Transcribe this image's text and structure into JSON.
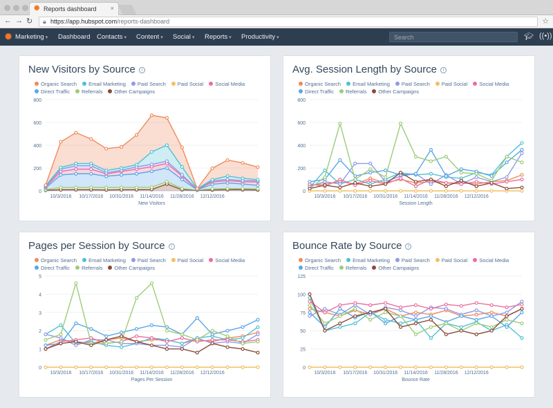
{
  "browser": {
    "tab_title": "Reports dashboard",
    "url_host": "https://app.hubspot.com",
    "url_path": "/reports-dashboard"
  },
  "nav": {
    "items": [
      "Marketing",
      "Dashboard",
      "Contacts",
      "Content",
      "Social",
      "Reports",
      "Productivity"
    ],
    "search_placeholder": "Search"
  },
  "legend_colors": {
    "Organic Search": "#f08a5d",
    "Email Marketing": "#4fc1d4",
    "Paid Search": "#8f9ae8",
    "Paid Social": "#f2c063",
    "Social Media": "#ea6f9d",
    "Direct Traffic": "#5aa6e6",
    "Referrals": "#9ccc7a",
    "Other Campaigns": "#8b4a38"
  },
  "chart_data": [
    {
      "type": "area",
      "title": "New Visitors by Source",
      "xlabel": "New Visitors",
      "ylim": [
        0,
        800
      ],
      "yticks": [
        "0",
        "200",
        "400",
        "600",
        "800"
      ],
      "xtick_labels": [
        "10/3/2016",
        "10/17/2016",
        "10/31/2016",
        "11/14/2016",
        "11/28/2016",
        "12/12/2016"
      ],
      "stacked": true,
      "x_count": 15,
      "series": [
        {
          "name": "Other Campaigns",
          "values": [
            5,
            10,
            10,
            10,
            8,
            10,
            10,
            12,
            60,
            10,
            5,
            8,
            10,
            10,
            8
          ]
        },
        {
          "name": "Referrals",
          "values": [
            5,
            20,
            20,
            20,
            20,
            20,
            20,
            20,
            20,
            10,
            2,
            10,
            10,
            10,
            10
          ]
        },
        {
          "name": "Direct Traffic",
          "values": [
            15,
            110,
            120,
            120,
            100,
            110,
            120,
            140,
            120,
            80,
            3,
            40,
            50,
            40,
            30
          ]
        },
        {
          "name": "Social Media",
          "values": [
            10,
            30,
            40,
            40,
            20,
            30,
            40,
            40,
            40,
            30,
            3,
            20,
            20,
            20,
            30
          ]
        },
        {
          "name": "Paid Search",
          "values": [
            5,
            20,
            30,
            30,
            10,
            10,
            20,
            20,
            20,
            10,
            3,
            10,
            10,
            10,
            10
          ]
        },
        {
          "name": "Email Marketing",
          "values": [
            5,
            15,
            20,
            20,
            20,
            20,
            20,
            110,
            140,
            70,
            2,
            10,
            30,
            20,
            10
          ]
        },
        {
          "name": "Organic Search",
          "values": [
            5,
            225,
            270,
            215,
            192,
            185,
            260,
            320,
            240,
            170,
            2,
            100,
            140,
            135,
            110
          ]
        }
      ]
    },
    {
      "type": "line",
      "title": "Avg. Session Length by Source",
      "xlabel": "Session Length",
      "ylim": [
        0,
        800
      ],
      "yticks": [
        "0",
        "200",
        "400",
        "600",
        "800"
      ],
      "xtick_labels": [
        "10/3/2016",
        "10/17/2016",
        "10/31/2016",
        "11/14/2016",
        "11/28/2016",
        "12/12/2016"
      ],
      "x_count": 15,
      "series": [
        {
          "name": "Organic Search",
          "values": [
            50,
            60,
            80,
            60,
            110,
            70,
            100,
            70,
            80,
            70,
            70,
            60,
            80,
            90,
            140
          ]
        },
        {
          "name": "Email Marketing",
          "values": [
            30,
            180,
            60,
            100,
            60,
            100,
            160,
            140,
            150,
            120,
            110,
            160,
            140,
            300,
            420
          ]
        },
        {
          "name": "Paid Search",
          "values": [
            40,
            80,
            60,
            240,
            240,
            80,
            130,
            150,
            60,
            140,
            60,
            120,
            80,
            120,
            330
          ]
        },
        {
          "name": "Paid Social",
          "values": [
            0,
            0,
            0,
            0,
            0,
            0,
            0,
            0,
            0,
            0,
            0,
            0,
            0,
            0,
            0
          ]
        },
        {
          "name": "Social Media",
          "values": [
            60,
            40,
            100,
            50,
            90,
            60,
            110,
            40,
            100,
            70,
            60,
            80,
            60,
            80,
            100
          ]
        },
        {
          "name": "Direct Traffic",
          "values": [
            80,
            100,
            270,
            130,
            160,
            180,
            140,
            150,
            360,
            130,
            190,
            170,
            130,
            250,
            360
          ]
        },
        {
          "name": "Referrals",
          "values": [
            20,
            120,
            590,
            100,
            190,
            120,
            590,
            300,
            260,
            300,
            160,
            150,
            90,
            300,
            250
          ]
        },
        {
          "name": "Other Campaigns",
          "values": [
            20,
            50,
            30,
            70,
            40,
            60,
            160,
            80,
            100,
            40,
            90,
            40,
            70,
            20,
            30
          ]
        }
      ]
    },
    {
      "type": "line",
      "title": "Pages per Session by Source",
      "xlabel": "Pages Per Session",
      "ylim": [
        0,
        5
      ],
      "yticks": [
        "0",
        "1",
        "2",
        "3",
        "4",
        "5"
      ],
      "xtick_labels": [
        "10/3/2016",
        "10/17/2016",
        "10/31/2016",
        "11/14/2016",
        "11/28/2016",
        "12/12/2016"
      ],
      "x_count": 15,
      "series": [
        {
          "name": "Organic Search",
          "values": [
            1.2,
            1.5,
            1.4,
            1.3,
            1.5,
            1.6,
            1.4,
            1.5,
            1.5,
            1.3,
            1.5,
            1.4,
            1.6,
            1.7,
            1.9
          ]
        },
        {
          "name": "Email Marketing",
          "values": [
            1.8,
            2.3,
            1.3,
            1.4,
            1.2,
            1.1,
            1.3,
            1.6,
            1.5,
            1.3,
            1.6,
            1.7,
            1.5,
            1.6,
            2.2
          ]
        },
        {
          "name": "Paid Search",
          "values": [
            1.8,
            1.6,
            1.2,
            1.5,
            1.5,
            1.3,
            1.3,
            1.2,
            1.2,
            1.1,
            1.6,
            1.3,
            1.4,
            1.3,
            1.8
          ]
        },
        {
          "name": "Paid Social",
          "values": [
            0,
            0,
            0,
            0,
            0,
            0,
            0,
            0,
            0,
            0,
            0,
            0,
            0,
            0,
            0
          ]
        },
        {
          "name": "Social Media",
          "values": [
            1.0,
            1.4,
            1.5,
            1.6,
            1.3,
            1.4,
            1.7,
            1.6,
            1.4,
            1.6,
            1.4,
            1.5,
            1.5,
            1.4,
            1.5
          ]
        },
        {
          "name": "Direct Traffic",
          "values": [
            1.2,
            1.3,
            2.4,
            2.1,
            1.7,
            1.9,
            2.1,
            2.3,
            2.2,
            1.8,
            2.7,
            1.8,
            2.0,
            2.2,
            2.6
          ]
        },
        {
          "name": "Referrals",
          "values": [
            1.5,
            1.8,
            4.6,
            1.3,
            1.3,
            1.4,
            3.8,
            4.6,
            2.0,
            1.8,
            1.5,
            2.0,
            1.7,
            1.3,
            1.4
          ]
        },
        {
          "name": "Other Campaigns",
          "values": [
            1.0,
            1.3,
            1.4,
            1.2,
            1.5,
            1.7,
            1.4,
            1.2,
            1.0,
            1.0,
            0.8,
            1.3,
            1.1,
            1.0,
            0.8
          ]
        }
      ]
    },
    {
      "type": "line",
      "title": "Bounce Rate by Source",
      "xlabel": "Bounce Rate",
      "ylim": [
        0,
        125
      ],
      "yticks": [
        "0",
        "25",
        "50",
        "75",
        "100",
        "125"
      ],
      "xtick_labels": [
        "10/3/2016",
        "10/17/2016",
        "10/31/2016",
        "11/14/2016",
        "11/28/2016",
        "12/12/2016"
      ],
      "x_count": 15,
      "series": [
        {
          "name": "Organic Search",
          "values": [
            80,
            75,
            70,
            78,
            72,
            80,
            70,
            75,
            72,
            78,
            70,
            72,
            75,
            70,
            80
          ]
        },
        {
          "name": "Email Marketing",
          "values": [
            95,
            50,
            55,
            60,
            75,
            65,
            60,
            65,
            40,
            60,
            55,
            62,
            50,
            58,
            40
          ]
        },
        {
          "name": "Paid Search",
          "values": [
            70,
            80,
            72,
            85,
            72,
            82,
            78,
            70,
            82,
            80,
            72,
            78,
            70,
            75,
            90
          ]
        },
        {
          "name": "Paid Social",
          "values": [
            0,
            0,
            0,
            0,
            0,
            0,
            0,
            0,
            0,
            0,
            0,
            0,
            0,
            0,
            0
          ]
        },
        {
          "name": "Social Media",
          "values": [
            90,
            75,
            85,
            88,
            85,
            88,
            82,
            85,
            80,
            86,
            84,
            88,
            85,
            82,
            86
          ]
        },
        {
          "name": "Direct Traffic",
          "values": [
            75,
            55,
            80,
            68,
            76,
            60,
            70,
            65,
            70,
            62,
            70,
            65,
            70,
            55,
            75
          ]
        },
        {
          "name": "Referrals",
          "values": [
            85,
            60,
            70,
            80,
            65,
            75,
            70,
            45,
            55,
            60,
            50,
            60,
            55,
            65,
            60
          ]
        },
        {
          "name": "Other Campaigns",
          "values": [
            100,
            50,
            60,
            70,
            75,
            80,
            55,
            60,
            65,
            45,
            50,
            45,
            50,
            70,
            80
          ]
        }
      ]
    }
  ]
}
